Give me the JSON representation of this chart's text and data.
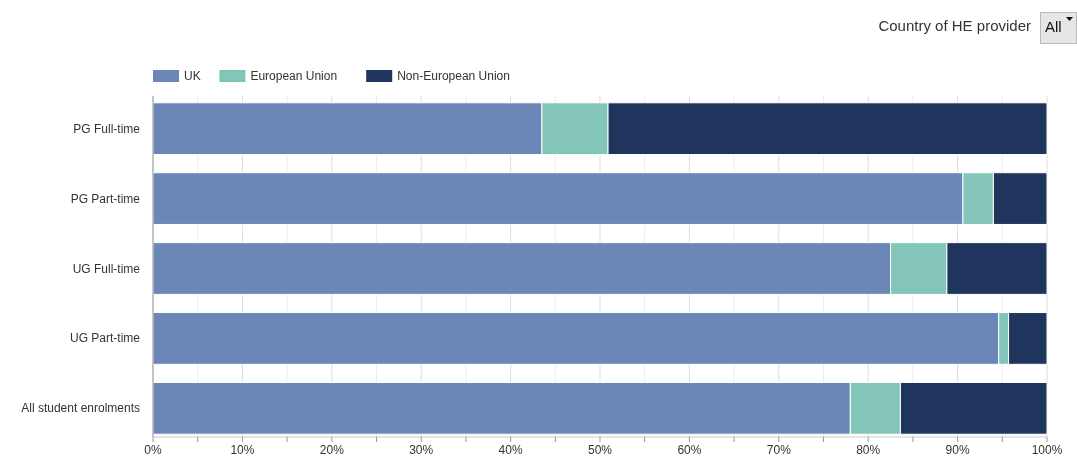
{
  "chart_data": {
    "type": "bar",
    "orientation": "horizontal",
    "stacked": true,
    "categories": [
      "PG Full-time",
      "PG Part-time",
      "UG Full-time",
      "UG Part-time",
      "All student enrolments"
    ],
    "series": [
      {
        "name": "UK",
        "color": "#6b87b8",
        "values": [
          43.5,
          90.6,
          82.5,
          94.6,
          78.0
        ]
      },
      {
        "name": "European Union",
        "color": "#83c6b9",
        "values": [
          7.4,
          3.4,
          6.3,
          1.1,
          5.6
        ]
      },
      {
        "name": "Non-European Union",
        "color": "#1f355e",
        "values": [
          49.1,
          6.0,
          11.2,
          4.3,
          16.4
        ]
      }
    ],
    "xlim": [
      0,
      100
    ],
    "xticks": [
      {
        "value": 0,
        "label": "0%"
      },
      {
        "value": 5,
        "label": null
      },
      {
        "value": 10,
        "label": "10%"
      },
      {
        "value": 15,
        "label": null
      },
      {
        "value": 20,
        "label": "20%"
      },
      {
        "value": 25,
        "label": null
      },
      {
        "value": 30,
        "label": "30%"
      },
      {
        "value": 35,
        "label": null
      },
      {
        "value": 40,
        "label": "40%"
      },
      {
        "value": 45,
        "label": null
      },
      {
        "value": 50,
        "label": "50%"
      },
      {
        "value": 55,
        "label": null
      },
      {
        "value": 60,
        "label": "60%"
      },
      {
        "value": 65,
        "label": null
      },
      {
        "value": 70,
        "label": "70%"
      },
      {
        "value": 75,
        "label": null
      },
      {
        "value": 80,
        "label": "80%"
      },
      {
        "value": 85,
        "label": null
      },
      {
        "value": 90,
        "label": "90%"
      },
      {
        "value": 95,
        "label": null
      },
      {
        "value": 100,
        "label": "100%"
      }
    ],
    "grid": "x",
    "legend": "top left",
    "annotations": [
      "Country of HE provider",
      "All"
    ]
  }
}
